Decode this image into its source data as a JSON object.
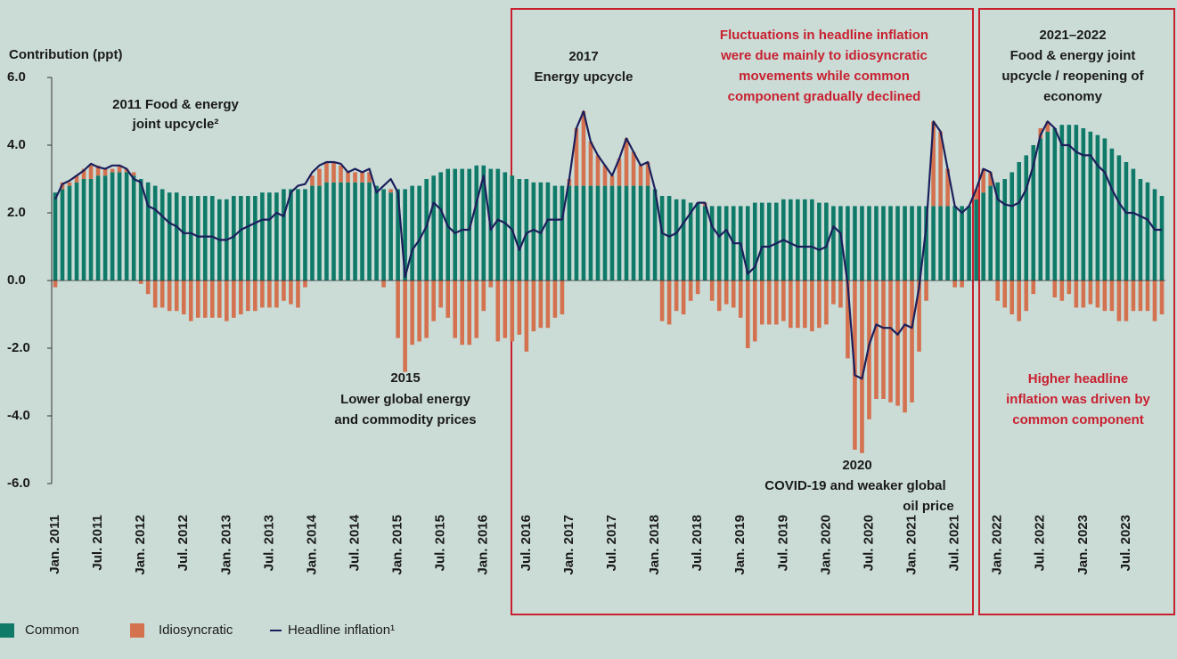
{
  "chart_data": {
    "type": "bar",
    "y_label": "Contribution (ppt)",
    "ylim": [
      -6,
      6
    ],
    "yticks": [
      {
        "value": 6,
        "label": "6.0"
      },
      {
        "value": 4,
        "label": "4.0"
      },
      {
        "value": 2,
        "label": "2.0"
      },
      {
        "value": 0,
        "label": "0.0"
      },
      {
        "value": -2,
        "label": "-2.0"
      },
      {
        "value": -4,
        "label": "-4.0"
      },
      {
        "value": -6,
        "label": "-6.0"
      }
    ],
    "categories": [
      "Jan. 2011",
      null,
      null,
      null,
      null,
      null,
      "Jul. 2011",
      null,
      null,
      null,
      null,
      null,
      "Jan. 2012",
      null,
      null,
      null,
      null,
      null,
      "Jul. 2012",
      null,
      null,
      null,
      null,
      null,
      "Jan. 2013",
      null,
      null,
      null,
      null,
      null,
      "Jul. 2013",
      null,
      null,
      null,
      null,
      null,
      "Jan. 2014",
      null,
      null,
      null,
      null,
      null,
      "Jul. 2014",
      null,
      null,
      null,
      null,
      null,
      "Jan. 2015",
      null,
      null,
      null,
      null,
      null,
      "Jul. 2015",
      null,
      null,
      null,
      null,
      null,
      "Jan. 2016",
      null,
      null,
      null,
      null,
      null,
      "Jul. 2016",
      null,
      null,
      null,
      null,
      null,
      "Jan. 2017",
      null,
      null,
      null,
      null,
      null,
      "Jul. 2017",
      null,
      null,
      null,
      null,
      null,
      "Jan. 2018",
      null,
      null,
      null,
      null,
      null,
      "Jul. 2018",
      null,
      null,
      null,
      null,
      null,
      "Jan. 2019",
      null,
      null,
      null,
      null,
      null,
      "Jul. 2019",
      null,
      null,
      null,
      null,
      null,
      "Jan. 2020",
      null,
      null,
      null,
      null,
      null,
      "Jul. 2020",
      null,
      null,
      null,
      null,
      null,
      "Jan. 2021",
      null,
      null,
      null,
      null,
      null,
      "Jul. 2021",
      null,
      null,
      null,
      null,
      null,
      "Jan. 2022",
      null,
      null,
      null,
      null,
      null,
      "Jul. 2022",
      null,
      null,
      null,
      null,
      null,
      "Jan. 2023",
      null,
      null,
      null,
      null,
      null,
      "Jul. 2023",
      null,
      null,
      null,
      null,
      null
    ],
    "series": [
      {
        "name": "Common",
        "color": "#0f7a68",
        "values": [
          2.6,
          2.7,
          2.8,
          2.9,
          3.0,
          3.0,
          3.1,
          3.1,
          3.2,
          3.2,
          3.2,
          3.1,
          3.0,
          2.9,
          2.8,
          2.7,
          2.6,
          2.6,
          2.5,
          2.5,
          2.5,
          2.5,
          2.5,
          2.4,
          2.4,
          2.5,
          2.5,
          2.5,
          2.5,
          2.6,
          2.6,
          2.6,
          2.7,
          2.7,
          2.7,
          2.7,
          2.8,
          2.8,
          2.9,
          2.9,
          2.9,
          2.9,
          2.9,
          2.9,
          2.9,
          2.8,
          2.7,
          2.6,
          2.7,
          2.7,
          2.8,
          2.8,
          3.0,
          3.1,
          3.2,
          3.3,
          3.3,
          3.3,
          3.3,
          3.4,
          3.4,
          3.3,
          3.3,
          3.2,
          3.1,
          3.0,
          3.0,
          2.9,
          2.9,
          2.9,
          2.8,
          2.8,
          2.8,
          2.8,
          2.8,
          2.8,
          2.8,
          2.8,
          2.8,
          2.8,
          2.8,
          2.8,
          2.8,
          2.8,
          2.7,
          2.5,
          2.5,
          2.4,
          2.4,
          2.3,
          2.3,
          2.2,
          2.2,
          2.2,
          2.2,
          2.2,
          2.2,
          2.2,
          2.3,
          2.3,
          2.3,
          2.3,
          2.4,
          2.4,
          2.4,
          2.4,
          2.4,
          2.3,
          2.3,
          2.2,
          2.2,
          2.2,
          2.2,
          2.2,
          2.2,
          2.2,
          2.2,
          2.2,
          2.2,
          2.2,
          2.2,
          2.2,
          2.2,
          2.2,
          2.2,
          2.2,
          2.2,
          2.2,
          2.2,
          2.4,
          2.6,
          2.8,
          2.9,
          3.0,
          3.2,
          3.5,
          3.7,
          4.0,
          4.2,
          4.4,
          4.5,
          4.6,
          4.6,
          4.6,
          4.5,
          4.4,
          4.3,
          4.2,
          3.9,
          3.7,
          3.5,
          3.3,
          3.0,
          2.9,
          2.7,
          2.5
        ]
      },
      {
        "name": "Idiosyncratic",
        "color": "#d4714f",
        "values": [
          -0.2,
          0.2,
          0.1,
          0.2,
          0.3,
          0.4,
          0.3,
          0.2,
          0.1,
          0.2,
          0.1,
          0.1,
          -0.1,
          -0.4,
          -0.8,
          -0.8,
          -0.9,
          -0.9,
          -1.0,
          -1.2,
          -1.1,
          -1.1,
          -1.1,
          -1.1,
          -1.2,
          -1.1,
          -1.0,
          -0.9,
          -0.9,
          -0.8,
          -0.8,
          -0.8,
          -0.6,
          -0.7,
          -0.8,
          -0.2,
          0.3,
          0.5,
          0.6,
          0.6,
          0.5,
          0.3,
          0.3,
          0.3,
          0.3,
          0,
          -0.2,
          0.1,
          -1.7,
          -2.7,
          -1.9,
          -1.8,
          -1.7,
          -1.2,
          -0.8,
          -1.1,
          -1.7,
          -1.9,
          -1.9,
          -1.7,
          -0.9,
          -0.2,
          -1.8,
          -1.7,
          -1.8,
          -1.6,
          -2.1,
          -1.5,
          -1.4,
          -1.4,
          -1.1,
          -1.0,
          0.2,
          1.7,
          2.2,
          1.3,
          0.9,
          0.6,
          0.3,
          0.8,
          1.4,
          1.0,
          0.6,
          0.7,
          0,
          -1.2,
          -1.3,
          -0.9,
          -1.0,
          -0.6,
          -0.4,
          0.1,
          -0.6,
          -0.9,
          -0.7,
          -0.8,
          -1.1,
          -2.0,
          -1.8,
          -1.3,
          -1.3,
          -1.3,
          -1.2,
          -1.4,
          -1.4,
          -1.4,
          -1.5,
          -1.4,
          -1.3,
          -0.7,
          -0.8,
          -2.3,
          -5.0,
          -5.1,
          -4.1,
          -3.5,
          -3.5,
          -3.6,
          -3.7,
          -3.9,
          -3.6,
          -2.1,
          -0.6,
          2.5,
          2.2,
          1.1,
          -0.2,
          -0.2,
          0,
          0.3,
          0.7,
          0.4,
          -0.6,
          -0.8,
          -1.0,
          -1.2,
          -0.9,
          -0.4,
          0.3,
          0.3,
          -0.5,
          -0.6,
          -0.4,
          -0.8,
          -0.8,
          -0.7,
          -0.8,
          -0.9,
          -0.9,
          -1.2,
          -1.2,
          -0.9,
          -0.9,
          -0.9,
          -1.2,
          -1.0
        ]
      },
      {
        "name": "Headline inflation¹",
        "color": "#1c1f5c",
        "type": "line",
        "values": [
          2.4,
          2.85,
          2.95,
          3.1,
          3.25,
          3.45,
          3.35,
          3.3,
          3.4,
          3.4,
          3.3,
          3.0,
          2.9,
          2.2,
          2.1,
          1.9,
          1.7,
          1.6,
          1.4,
          1.4,
          1.3,
          1.3,
          1.3,
          1.2,
          1.2,
          1.3,
          1.5,
          1.6,
          1.7,
          1.8,
          1.8,
          2.0,
          1.9,
          2.6,
          2.8,
          2.85,
          3.2,
          3.4,
          3.5,
          3.5,
          3.45,
          3.2,
          3.3,
          3.2,
          3.3,
          2.6,
          2.8,
          3.0,
          2.6,
          0.1,
          0.9,
          1.2,
          1.6,
          2.3,
          2.1,
          1.6,
          1.4,
          1.5,
          1.5,
          2.3,
          3.1,
          1.5,
          1.8,
          1.7,
          1.5,
          0.9,
          1.4,
          1.5,
          1.4,
          1.8,
          1.8,
          1.8,
          3.0,
          4.5,
          5.0,
          4.1,
          3.7,
          3.4,
          3.1,
          3.6,
          4.2,
          3.8,
          3.4,
          3.5,
          2.7,
          1.4,
          1.3,
          1.4,
          1.7,
          2.0,
          2.3,
          2.3,
          1.6,
          1.3,
          1.5,
          1.1,
          1.1,
          0.2,
          0.4,
          1.0,
          1.0,
          1.1,
          1.2,
          1.1,
          1.0,
          1.0,
          1.0,
          0.9,
          1.0,
          1.6,
          1.4,
          -0.1,
          -2.8,
          -2.9,
          -1.9,
          -1.3,
          -1.4,
          -1.4,
          -1.6,
          -1.3,
          -1.4,
          -0.2,
          1.6,
          4.7,
          4.4,
          3.3,
          2.2,
          2.0,
          2.2,
          2.7,
          3.3,
          3.2,
          2.4,
          2.25,
          2.2,
          2.3,
          2.7,
          3.4,
          4.3,
          4.7,
          4.5,
          4.0,
          4.0,
          3.8,
          3.7,
          3.7,
          3.4,
          3.2,
          2.7,
          2.3,
          2.0,
          2.0,
          1.9,
          1.8,
          1.5,
          1.5
        ]
      }
    ],
    "annotations": [
      {
        "lines": [
          "2011 Food & energy",
          "joint upcycle²"
        ],
        "color": "#1a1a1a"
      },
      {
        "lines": [
          "2015",
          "Lower global energy",
          "and commodity prices"
        ],
        "color": "#1a1a1a"
      },
      {
        "lines": [
          "2017",
          "Energy upcycle"
        ],
        "color": "#1a1a1a"
      },
      {
        "lines": [
          "Fluctuations in headline inflation",
          "were due mainly to idiosyncratic",
          "movements while common",
          "component gradually declined"
        ],
        "color": "#c8202f"
      },
      {
        "lines": [
          "2021–2022",
          "Food & energy joint",
          "upcycle / reopening of",
          "economy"
        ],
        "color": "#1a1a1a"
      },
      {
        "lines": [
          "2020",
          "COVID-19 and weaker global",
          "oil price"
        ],
        "color": "#1a1a1a"
      },
      {
        "lines": [
          "Higher headline",
          "inflation was driven by",
          "common component"
        ],
        "color": "#c8202f"
      }
    ]
  }
}
